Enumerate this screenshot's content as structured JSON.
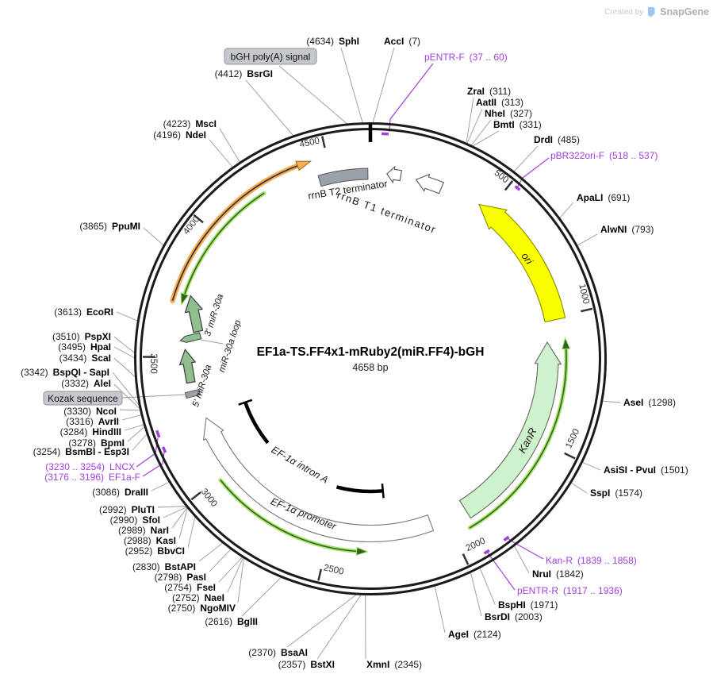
{
  "watermark": {
    "created_by": "Created by",
    "brand": "SnapGene"
  },
  "plasmid": {
    "title": "EF1a-TS.FF4x1-mRuby2(miR.FF4)-bGH",
    "size": "4658 bp",
    "length_bp": 4658
  },
  "ticks": [
    "500",
    "1000",
    "1500",
    "2000",
    "2500",
    "3000",
    "3500",
    "4000",
    "4500"
  ],
  "features": {
    "ori": "ori",
    "kanr": "KanR",
    "rrnb_t1": "rrnB T1 terminator",
    "rrnb_t2": "rrnB T2 terminator",
    "bgh_badge": "bGH poly(A) signal",
    "kozak_badge": "Kozak sequence",
    "ef1a_promoter": "EF-1α promoter",
    "ef1a_intron": "EF-1α intron A",
    "mir3": "3' miR-30a",
    "mir_loop": "miR-30a loop",
    "mir5": "5' miR-30a"
  },
  "sites": [
    {
      "name": "SphI",
      "pos": "(4634)",
      "side": "left"
    },
    {
      "name": "AccI",
      "pos": "(7)",
      "side": "right"
    },
    {
      "name": "BsrGI",
      "pos": "(4412)",
      "side": "left"
    },
    {
      "name": "ZraI",
      "pos": "(311)",
      "side": "right"
    },
    {
      "name": "AatII",
      "pos": "(313)",
      "side": "right"
    },
    {
      "name": "NheI",
      "pos": "(327)",
      "side": "right"
    },
    {
      "name": "BmtI",
      "pos": "(331)",
      "side": "right"
    },
    {
      "name": "DrdI",
      "pos": "(485)",
      "side": "right"
    },
    {
      "name": "ApaLI",
      "pos": "(691)",
      "side": "right"
    },
    {
      "name": "AlwNI",
      "pos": "(793)",
      "side": "right"
    },
    {
      "name": "AseI",
      "pos": "(1298)",
      "side": "right"
    },
    {
      "name": "AsiSI  - PvuI",
      "pos": "(1501)",
      "side": "right"
    },
    {
      "name": "SspI",
      "pos": "(1574)",
      "side": "right"
    },
    {
      "name": "NruI",
      "pos": "(1842)",
      "side": "right"
    },
    {
      "name": "BspHI",
      "pos": "(1971)",
      "side": "right"
    },
    {
      "name": "BsrDI",
      "pos": "(2003)",
      "side": "right"
    },
    {
      "name": "AgeI",
      "pos": "(2124)",
      "side": "right"
    },
    {
      "name": "XmnI",
      "pos": "(2345)",
      "side": "right"
    },
    {
      "name": "BstXI",
      "pos": "(2357)",
      "side": "left"
    },
    {
      "name": "BsaAI",
      "pos": "(2370)",
      "side": "left"
    },
    {
      "name": "BglII",
      "pos": "(2616)",
      "side": "left"
    },
    {
      "name": "NgoMIV",
      "pos": "(2750)",
      "side": "left"
    },
    {
      "name": "NaeI",
      "pos": "(2752)",
      "side": "left"
    },
    {
      "name": "FseI",
      "pos": "(2754)",
      "side": "left"
    },
    {
      "name": "PasI",
      "pos": "(2798)",
      "side": "left"
    },
    {
      "name": "BstAPI",
      "pos": "(2830)",
      "side": "left"
    },
    {
      "name": "BbvCI",
      "pos": "(2952)",
      "side": "left"
    },
    {
      "name": "KasI",
      "pos": "(2988)",
      "side": "left"
    },
    {
      "name": "NarI",
      "pos": "(2989)",
      "side": "left"
    },
    {
      "name": "SfoI",
      "pos": "(2990)",
      "side": "left"
    },
    {
      "name": "PluTI",
      "pos": "(2992)",
      "side": "left"
    },
    {
      "name": "DraIII",
      "pos": "(3086)",
      "side": "left"
    },
    {
      "name": "BsmBI  - Esp3I",
      "pos": "(3254)",
      "side": "left"
    },
    {
      "name": "BpmI",
      "pos": "(3278)",
      "side": "left"
    },
    {
      "name": "HindIII",
      "pos": "(3284)",
      "side": "left"
    },
    {
      "name": "AvrII",
      "pos": "(3316)",
      "side": "left"
    },
    {
      "name": "NcoI",
      "pos": "(3330)",
      "side": "left"
    },
    {
      "name": "AleI",
      "pos": "(3332)",
      "side": "left"
    },
    {
      "name": "BspQI  - SapI",
      "pos": "(3342)",
      "side": "left"
    },
    {
      "name": "ScaI",
      "pos": "(3434)",
      "side": "left"
    },
    {
      "name": "HpaI",
      "pos": "(3495)",
      "side": "left"
    },
    {
      "name": "PspXI",
      "pos": "(3510)",
      "side": "left"
    },
    {
      "name": "EcoRI",
      "pos": "(3613)",
      "side": "left"
    },
    {
      "name": "PpuMI",
      "pos": "(3865)",
      "side": "left"
    },
    {
      "name": "NdeI",
      "pos": "(4196)",
      "side": "left"
    },
    {
      "name": "MscI",
      "pos": "(4223)",
      "side": "left"
    }
  ],
  "primers": [
    {
      "name": "pENTR-F",
      "pos": "(37 .. 60)",
      "side": "right"
    },
    {
      "name": "pBR322ori-F",
      "pos": "(518 .. 537)",
      "side": "right"
    },
    {
      "name": "Kan-R",
      "pos": "(1839 .. 1858)",
      "side": "right"
    },
    {
      "name": "pENTR-R",
      "pos": "(1917 .. 1936)",
      "side": "right"
    },
    {
      "name": "EF1a-F",
      "pos": "(3176 .. 3196)",
      "side": "left"
    },
    {
      "name": "LNCX",
      "pos": "(3230 .. 3254)",
      "side": "left"
    }
  ],
  "colors": {
    "primer_purple": "#A53DE0",
    "feature_yellow": "#FAFF00",
    "feature_yellow_stroke": "#8a8a00",
    "feature_pale_green": "#CDF2CC",
    "feature_sage": "#8FBE8F",
    "feature_orange": "#F4AC55",
    "feature_orange_stroke": "#9c6a1e",
    "arrow_green_glow": "#A8E36B",
    "arrow_green_core": "#2F641E",
    "badge_gray": "#C5C9CD",
    "badge_stroke": "#8f9498",
    "box_gray": "#9AA1A8",
    "ring_dark": "#1b1b1b",
    "leader_gray": "#999999",
    "logo_blue": "#9CC7EE"
  }
}
